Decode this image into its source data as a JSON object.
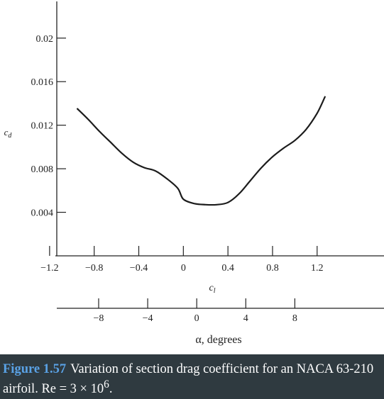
{
  "chart_data": {
    "type": "line",
    "ylabel": "c_d",
    "y_ticks": [
      0.004,
      0.008,
      0.012,
      0.016,
      0.02
    ],
    "y_tick_labels": [
      "0.004",
      "0.008",
      "0.012",
      "0.016",
      "0.02"
    ],
    "ylim": [
      0.0,
      0.0235
    ],
    "xlabel": "c_l",
    "x_ticks": [
      -1.2,
      -0.8,
      -0.4,
      0,
      0.4,
      0.8,
      1.2
    ],
    "x_tick_labels": [
      "−1.2",
      "−0.8",
      "−0.4",
      "0",
      "0.4",
      "0.8",
      "1.2"
    ],
    "xlim": [
      -1.645,
      1.8
    ],
    "secondary_axis": {
      "label": "α, degrees",
      "ticks": [
        -8,
        -4,
        0,
        4,
        8
      ],
      "tick_labels": [
        "−8",
        "−4",
        "0",
        "4",
        "8"
      ],
      "cl_at_zero": 0.12,
      "cl_per_degree": 0.11
    },
    "series": [
      {
        "x": [
          -0.95,
          -0.85,
          -0.75,
          -0.65,
          -0.55,
          -0.45,
          -0.35,
          -0.25,
          -0.15,
          -0.05,
          0.0,
          0.1,
          0.2,
          0.3,
          0.4,
          0.5,
          0.6,
          0.7,
          0.8,
          0.9,
          1.0,
          1.1,
          1.2,
          1.27
        ],
        "y": [
          0.0135,
          0.0125,
          0.0114,
          0.0104,
          0.0094,
          0.0086,
          0.0081,
          0.0078,
          0.0071,
          0.0062,
          0.0052,
          0.0048,
          0.0047,
          0.0047,
          0.0049,
          0.0057,
          0.0069,
          0.0081,
          0.0091,
          0.0099,
          0.0106,
          0.0116,
          0.0131,
          0.0146
        ]
      }
    ],
    "grid": false
  },
  "caption": {
    "figure_label": "Figure 1.57",
    "text": "Variation of section drag coefficient for an NACA 63-210 airfoil. Re = 3 × 10",
    "superscript": "6",
    "trailing": "."
  }
}
